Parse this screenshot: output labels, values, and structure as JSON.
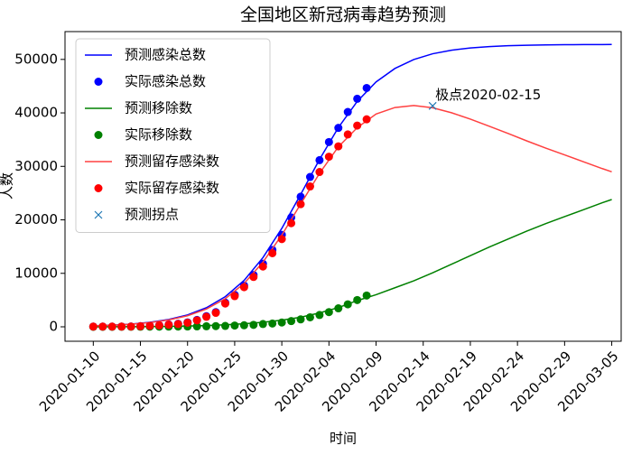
{
  "chart_data": {
    "type": "line",
    "title": "全国地区新冠病毒趋势预测",
    "x_label": "时间",
    "y_label": "人数",
    "xlim": [
      "2020-01-07",
      "2020-03-06"
    ],
    "xticks": [
      "2020-01-10",
      "2020-01-15",
      "2020-01-20",
      "2020-01-25",
      "2020-01-30",
      "2020-02-04",
      "2020-02-09",
      "2020-02-14",
      "2020-02-19",
      "2020-02-24",
      "2020-02-29",
      "2020-03-05"
    ],
    "ylim": [
      -2700,
      55200
    ],
    "yticks": [
      0,
      10000,
      20000,
      30000,
      40000,
      50000
    ],
    "legend": "upper left",
    "annotations": [
      "极点2020-02-15"
    ],
    "series": [
      {
        "name": "预测感染总数",
        "mode": "line",
        "color": "#0000ff",
        "x": [
          "2020-01-10",
          "2020-01-12",
          "2020-01-14",
          "2020-01-16",
          "2020-01-18",
          "2020-01-20",
          "2020-01-22",
          "2020-01-24",
          "2020-01-26",
          "2020-01-28",
          "2020-01-30",
          "2020-02-01",
          "2020-02-03",
          "2020-02-05",
          "2020-02-07",
          "2020-02-09",
          "2020-02-11",
          "2020-02-13",
          "2020-02-15",
          "2020-02-17",
          "2020-02-19",
          "2020-02-21",
          "2020-02-23",
          "2020-02-25",
          "2020-02-27",
          "2020-02-29",
          "2020-03-02",
          "2020-03-04",
          "2020-03-05"
        ],
        "values": [
          190,
          313,
          513,
          839,
          1371,
          2222,
          3568,
          5635,
          8684,
          12941,
          18410,
          24754,
          31298,
          37262,
          42140,
          45790,
          48307,
          49977,
          51054,
          51725,
          52143,
          52400,
          52556,
          52652,
          52710,
          52746,
          52767,
          52780,
          52785
        ]
      },
      {
        "name": "实际感染总数",
        "mode": "scatter",
        "color": "#0000ff",
        "x": [
          "2020-01-10",
          "2020-01-11",
          "2020-01-12",
          "2020-01-13",
          "2020-01-14",
          "2020-01-15",
          "2020-01-16",
          "2020-01-17",
          "2020-01-18",
          "2020-01-19",
          "2020-01-20",
          "2020-01-21",
          "2020-01-22",
          "2020-01-23",
          "2020-01-24",
          "2020-01-25",
          "2020-01-26",
          "2020-01-27",
          "2020-01-28",
          "2020-01-29",
          "2020-01-30",
          "2020-01-31",
          "2020-02-01",
          "2020-02-02",
          "2020-02-03",
          "2020-02-04",
          "2020-02-05",
          "2020-02-06",
          "2020-02-07",
          "2020-02-08"
        ],
        "values": [
          41,
          41,
          41,
          45,
          62,
          121,
          198,
          291,
          440,
          571,
          830,
          1287,
          1975,
          2744,
          4515,
          5974,
          7711,
          9692,
          11791,
          14380,
          17205,
          20438,
          24324,
          28018,
          31161,
          34546,
          37198,
          40171,
          42638,
          44653
        ]
      },
      {
        "name": "预测移除数",
        "mode": "line",
        "color": "#008000",
        "x": [
          "2020-01-10",
          "2020-01-12",
          "2020-01-14",
          "2020-01-16",
          "2020-01-18",
          "2020-01-20",
          "2020-01-22",
          "2020-01-24",
          "2020-01-26",
          "2020-01-28",
          "2020-01-30",
          "2020-02-01",
          "2020-02-03",
          "2020-02-05",
          "2020-02-07",
          "2020-02-09",
          "2020-02-11",
          "2020-02-13",
          "2020-02-15",
          "2020-02-17",
          "2020-02-19",
          "2020-02-21",
          "2020-02-23",
          "2020-02-25",
          "2020-02-27",
          "2020-02-29",
          "2020-03-02",
          "2020-03-04",
          "2020-03-05"
        ],
        "values": [
          0,
          10,
          25,
          50,
          90,
          150,
          240,
          380,
          580,
          850,
          1250,
          1800,
          2600,
          3600,
          4900,
          6000,
          7300,
          8600,
          10100,
          11700,
          13300,
          14900,
          16400,
          17900,
          19300,
          20600,
          21900,
          23200,
          23800
        ]
      },
      {
        "name": "实际移除数",
        "mode": "scatter",
        "color": "#008000",
        "x": [
          "2020-01-10",
          "2020-01-11",
          "2020-01-12",
          "2020-01-13",
          "2020-01-14",
          "2020-01-15",
          "2020-01-16",
          "2020-01-17",
          "2020-01-18",
          "2020-01-19",
          "2020-01-20",
          "2020-01-21",
          "2020-01-22",
          "2020-01-23",
          "2020-01-24",
          "2020-01-25",
          "2020-01-26",
          "2020-01-27",
          "2020-01-28",
          "2020-01-29",
          "2020-01-30",
          "2020-01-31",
          "2020-02-01",
          "2020-02-02",
          "2020-02-03",
          "2020-02-04",
          "2020-02-05",
          "2020-02-06",
          "2020-02-07",
          "2020-02-08"
        ],
        "values": [
          3,
          5,
          8,
          12,
          15,
          20,
          25,
          31,
          42,
          50,
          59,
          80,
          105,
          131,
          166,
          235,
          295,
          368,
          523,
          613,
          806,
          1067,
          1390,
          1778,
          2212,
          2745,
          3454,
          4202,
          5007,
          5853
        ]
      },
      {
        "name": "预测留存感染数",
        "mode": "line",
        "color": "#ff4040",
        "x": [
          "2020-01-10",
          "2020-01-12",
          "2020-01-14",
          "2020-01-16",
          "2020-01-18",
          "2020-01-20",
          "2020-01-22",
          "2020-01-24",
          "2020-01-26",
          "2020-01-28",
          "2020-01-30",
          "2020-02-01",
          "2020-02-03",
          "2020-02-05",
          "2020-02-07",
          "2020-02-09",
          "2020-02-11",
          "2020-02-13",
          "2020-02-15",
          "2020-02-17",
          "2020-02-19",
          "2020-02-21",
          "2020-02-23",
          "2020-02-25",
          "2020-02-27",
          "2020-02-29",
          "2020-03-02",
          "2020-03-04",
          "2020-03-05"
        ],
        "values": [
          190,
          303,
          488,
          789,
          1281,
          2072,
          3328,
          5255,
          8104,
          12091,
          17160,
          22954,
          28698,
          33662,
          37240,
          39790,
          41007,
          41377,
          40954,
          40025,
          38843,
          37500,
          36156,
          34752,
          33410,
          32146,
          30867,
          29580,
          28985
        ]
      },
      {
        "name": "实际留存感染数",
        "mode": "scatter",
        "color": "#ff0000",
        "x": [
          "2020-01-10",
          "2020-01-11",
          "2020-01-12",
          "2020-01-13",
          "2020-01-14",
          "2020-01-15",
          "2020-01-16",
          "2020-01-17",
          "2020-01-18",
          "2020-01-19",
          "2020-01-20",
          "2020-01-21",
          "2020-01-22",
          "2020-01-23",
          "2020-01-24",
          "2020-01-25",
          "2020-01-26",
          "2020-01-27",
          "2020-01-28",
          "2020-01-29",
          "2020-01-30",
          "2020-01-31",
          "2020-02-01",
          "2020-02-02",
          "2020-02-03",
          "2020-02-04",
          "2020-02-05",
          "2020-02-06",
          "2020-02-07",
          "2020-02-08"
        ],
        "values": [
          38,
          36,
          33,
          33,
          47,
          101,
          173,
          260,
          398,
          521,
          771,
          1207,
          1870,
          2613,
          4349,
          5739,
          7416,
          9324,
          11268,
          13767,
          16399,
          19371,
          22934,
          26240,
          28949,
          31801,
          33744,
          35969,
          37631,
          38800
        ]
      },
      {
        "name": "预测拐点",
        "mode": "cross",
        "color": "#1f77b4",
        "x": [
          "2020-02-15"
        ],
        "values": [
          41300
        ]
      }
    ]
  }
}
